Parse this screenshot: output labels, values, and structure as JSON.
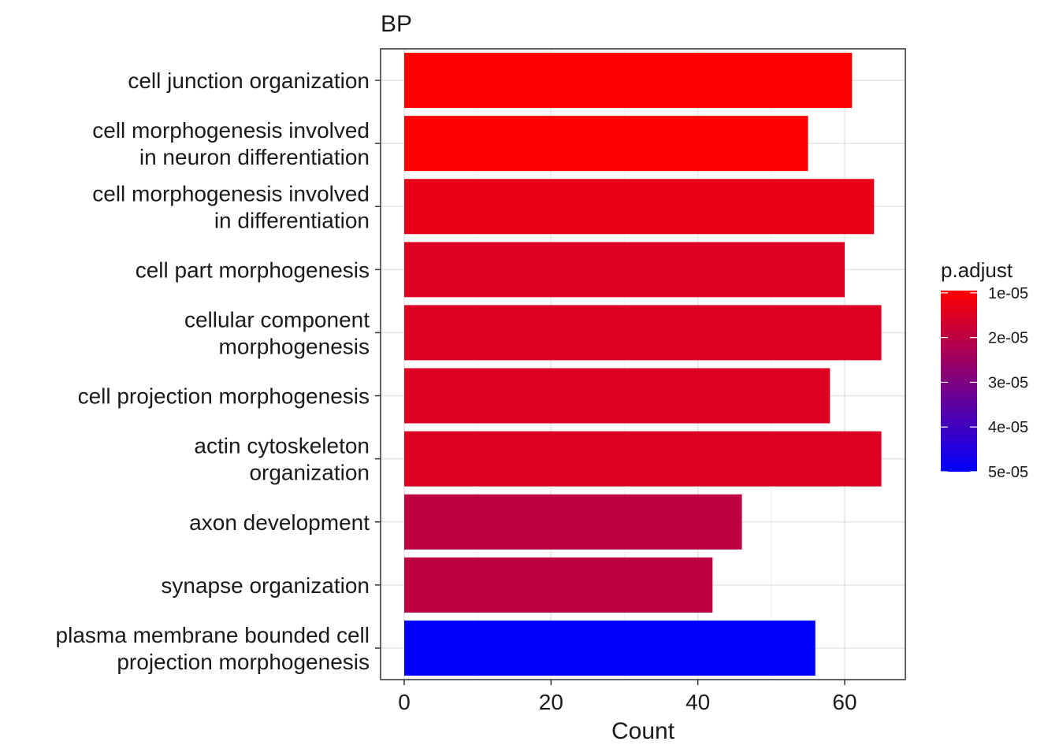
{
  "chart_data": {
    "type": "bar",
    "orientation": "horizontal",
    "title": "BP",
    "xlabel": "Count",
    "ylabel": "",
    "xlim": [
      0,
      68.3
    ],
    "x_ticks": [
      0,
      20,
      40,
      60
    ],
    "grid": true,
    "legend_position": "right",
    "categories": [
      [
        "cell junction organization"
      ],
      [
        "cell morphogenesis involved",
        "in neuron differentiation"
      ],
      [
        "cell morphogenesis involved",
        "in differentiation"
      ],
      [
        "cell part morphogenesis"
      ],
      [
        "cellular component",
        "morphogenesis"
      ],
      [
        "cell projection morphogenesis"
      ],
      [
        "actin cytoskeleton",
        "organization"
      ],
      [
        "axon development"
      ],
      [
        "synapse organization"
      ],
      [
        "plasma membrane bounded cell",
        "projection morphogenesis"
      ]
    ],
    "values": [
      61,
      55,
      64,
      60,
      65,
      58,
      65,
      46,
      42,
      56
    ],
    "p_adjust": [
      9.7e-06,
      9.8e-06,
      1.3e-05,
      1.5e-05,
      1.5e-05,
      1.5e-05,
      1.5e-05,
      2e-05,
      2e-05,
      5e-05
    ],
    "color_scale": {
      "title": "p.adjust",
      "low_color": "#ff0000",
      "high_color": "#0000ff",
      "range": [
        9.5e-06,
        5e-05
      ],
      "ticks": [
        {
          "value": 1e-05,
          "label": "1e-05"
        },
        {
          "value": 2e-05,
          "label": "2e-05"
        },
        {
          "value": 3e-05,
          "label": "3e-05"
        },
        {
          "value": 4e-05,
          "label": "4e-05"
        },
        {
          "value": 5e-05,
          "label": "5e-05"
        }
      ]
    }
  }
}
